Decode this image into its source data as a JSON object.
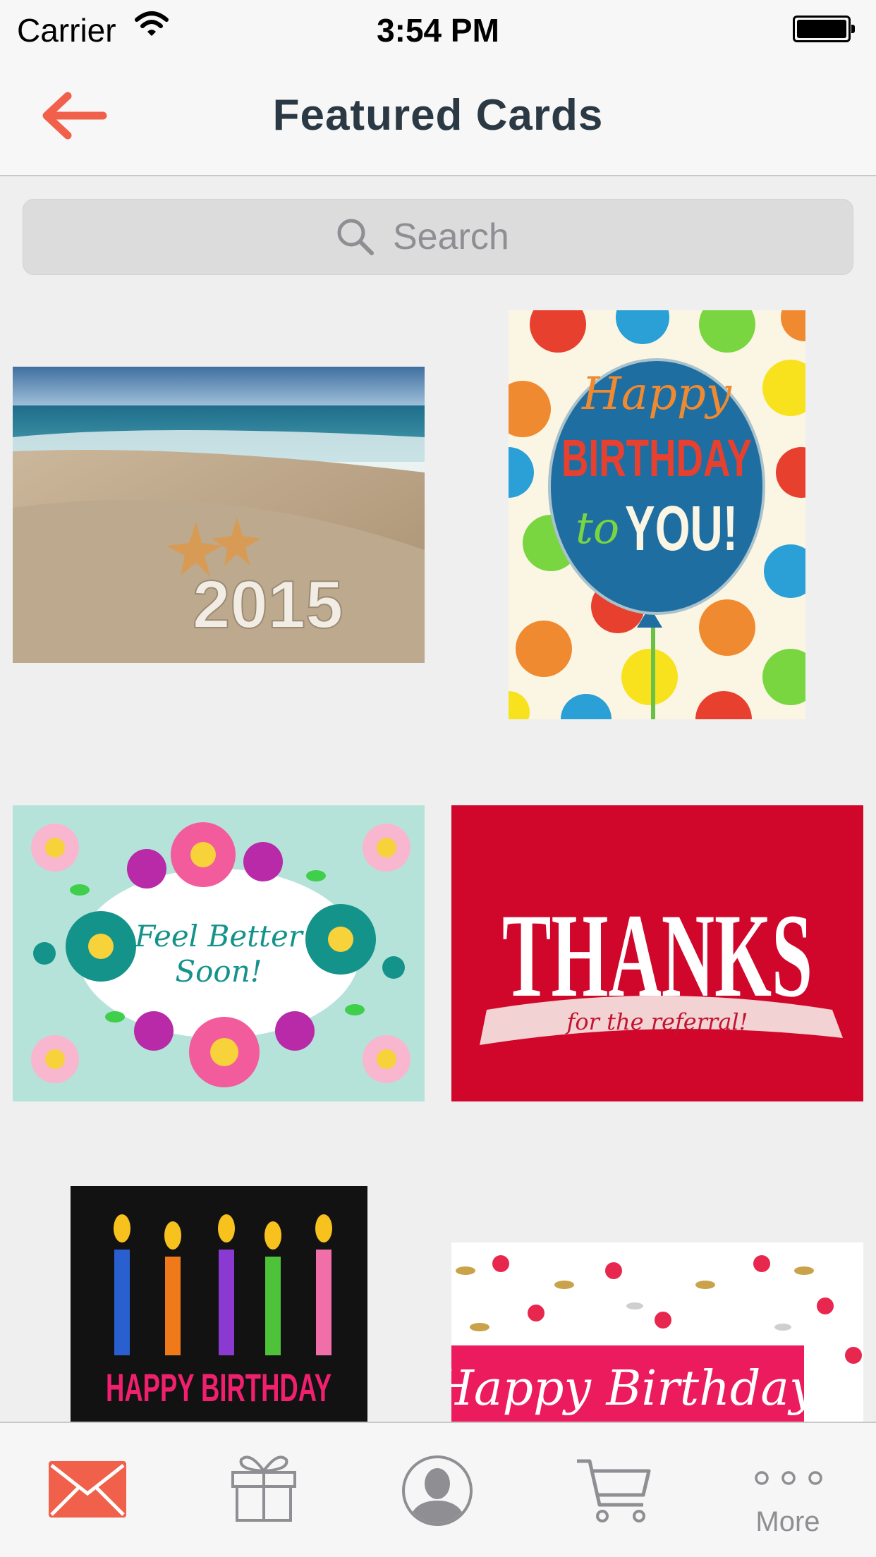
{
  "status_bar": {
    "carrier": "Carrier",
    "time": "3:54 PM",
    "wifi_icon": "wifi-icon",
    "battery_icon": "battery-icon"
  },
  "nav": {
    "title": "Featured Cards",
    "back_icon": "arrow-left-icon",
    "accent_color": "#f0604a"
  },
  "search": {
    "placeholder": "Search",
    "value": ""
  },
  "cards": [
    {
      "name": "beach-2015-card",
      "text": "2015"
    },
    {
      "name": "happy-birthday-balloon-card",
      "line1": "Happy",
      "line2": "BIRTHDAY",
      "line3_a": "to",
      "line3_b": "YOU!"
    },
    {
      "name": "feel-better-soon-card",
      "line1": "Feel Better",
      "line2": "Soon!"
    },
    {
      "name": "thanks-referral-card",
      "title": "THANKS",
      "banner": "for the referral!"
    },
    {
      "name": "candles-happy-birthday-card",
      "text": "HAPPY BIRTHDAY"
    },
    {
      "name": "floral-happy-birthday-card",
      "text": "Happy Birthday"
    }
  ],
  "tab_bar": {
    "items": [
      {
        "icon": "envelope-icon",
        "active": true
      },
      {
        "icon": "gift-icon",
        "active": false
      },
      {
        "icon": "profile-icon",
        "active": false
      },
      {
        "icon": "cart-icon",
        "active": false
      },
      {
        "icon": "more-dots-icon",
        "label": "More",
        "active": false
      }
    ],
    "active_color": "#f0604a",
    "inactive_color": "#8e8e93"
  }
}
